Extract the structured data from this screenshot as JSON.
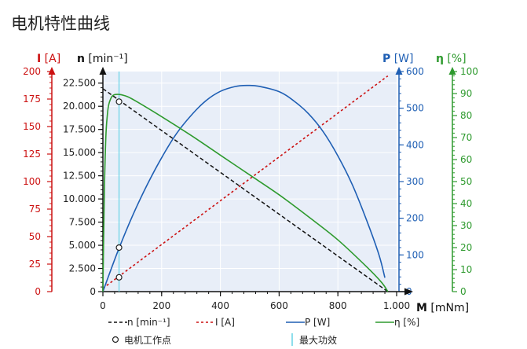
{
  "page": {
    "title": "电机特性曲线"
  },
  "colors": {
    "current": "#cc1111",
    "speed": "#111111",
    "power": "#1f5fb4",
    "efficiency": "#2e9a2e",
    "plot_bg": "#e8eef8",
    "grid": "#ffffff",
    "max_power_line": "#67d3e6"
  },
  "chart_data": {
    "type": "line",
    "x": {
      "label": "M",
      "unit": "[mNm]",
      "range": [
        0,
        1000
      ],
      "ticks": [
        0,
        200,
        400,
        600,
        800,
        1000
      ],
      "tick_labels": [
        "0",
        "200",
        "400",
        "600",
        "800",
        "1.000"
      ]
    },
    "axes": {
      "speed": {
        "label": "n",
        "unit": "[min⁻¹]",
        "range": [
          0,
          23750
        ],
        "ticks": [
          0,
          2500,
          5000,
          7500,
          10000,
          12500,
          15000,
          17500,
          20000,
          22500
        ],
        "tick_labels": [
          "0",
          "2.500",
          "5.000",
          "7.500",
          "10.000",
          "12.500",
          "15.000",
          "17.500",
          "20.000",
          "22.500"
        ]
      },
      "current": {
        "label": "I",
        "unit": "[A]",
        "range": [
          0,
          200
        ],
        "ticks": [
          0,
          25,
          50,
          75,
          100,
          125,
          150,
          175,
          200
        ],
        "tick_labels": [
          "0",
          "25",
          "50",
          "75",
          "100",
          "125",
          "150",
          "175",
          "200"
        ]
      },
      "power": {
        "label": "P",
        "unit": "[W]",
        "range": [
          0,
          600
        ],
        "ticks": [
          0,
          100,
          200,
          300,
          400,
          500,
          600
        ],
        "tick_labels": [
          "0",
          "100",
          "200",
          "300",
          "400",
          "500",
          "600"
        ]
      },
      "efficiency": {
        "label": "η",
        "unit": "[%]",
        "range": [
          0,
          100
        ],
        "ticks": [
          0,
          10,
          20,
          30,
          40,
          50,
          60,
          70,
          80,
          90,
          100
        ],
        "tick_labels": [
          "0",
          "10",
          "20",
          "30",
          "40",
          "50",
          "60",
          "70",
          "80",
          "90",
          "100"
        ]
      }
    },
    "series": [
      {
        "name": "n [min⁻¹]",
        "axis": "speed",
        "style": "dashed",
        "x": [
          0,
          970
        ],
        "y": [
          21900,
          0
        ]
      },
      {
        "name": "I [A]",
        "axis": "current",
        "style": "dotted",
        "x": [
          0,
          970
        ],
        "y": [
          3,
          196
        ]
      },
      {
        "name": "P [W]",
        "axis": "power",
        "style": "solid",
        "x": [
          0,
          50,
          100,
          150,
          200,
          250,
          300,
          350,
          400,
          450,
          490,
          530,
          600,
          650,
          700,
          750,
          800,
          850,
          900,
          940,
          960
        ],
        "y": [
          0,
          108,
          205,
          290,
          365,
          430,
          480,
          520,
          546,
          559,
          562,
          560,
          545,
          520,
          485,
          436,
          370,
          290,
          190,
          100,
          38
        ]
      },
      {
        "name": "η [%]",
        "axis": "efficiency",
        "style": "solid",
        "x": [
          0,
          5,
          10,
          15,
          20,
          30,
          40,
          55,
          70,
          100,
          200,
          300,
          400,
          500,
          600,
          700,
          800,
          900,
          950,
          970
        ],
        "y": [
          0,
          45,
          70,
          80,
          85,
          88.5,
          89.5,
          89.6,
          89.2,
          87.5,
          79.5,
          71,
          62,
          53,
          44,
          34,
          23.5,
          11,
          4,
          0
        ]
      }
    ],
    "operating_points": {
      "label": "电机工作点",
      "x": 55,
      "points": [
        {
          "axis": "speed",
          "value": 20500
        },
        {
          "axis": "current",
          "value": 13
        },
        {
          "axis": "power",
          "value": 120
        }
      ]
    },
    "max_power_marker": {
      "label": "最大功效",
      "x": 55
    },
    "legend": {
      "position": "bottom",
      "items": [
        "n [min⁻¹]",
        "I [A]",
        "P [W]",
        "η [%]",
        "电机工作点",
        "最大功效"
      ]
    }
  }
}
